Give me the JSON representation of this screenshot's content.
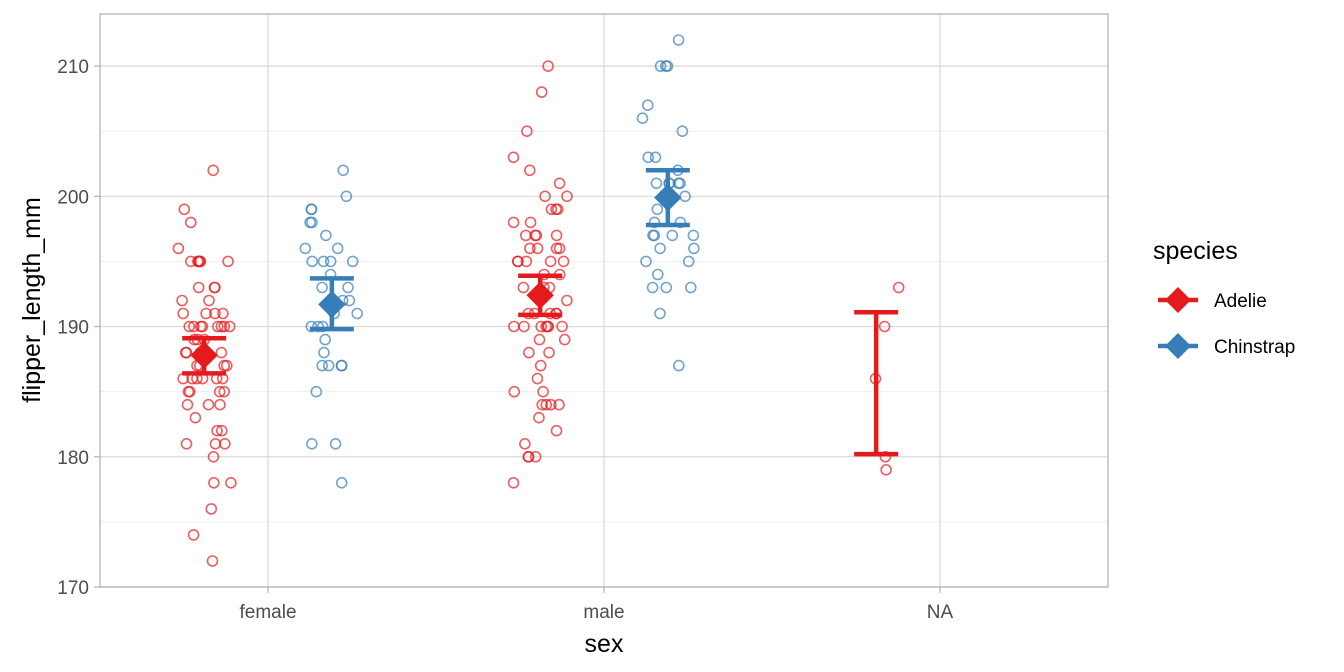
{
  "chart_data": {
    "type": "scatter",
    "title": "",
    "xlabel": "sex",
    "ylabel": "flipper_length_mm",
    "categories": [
      "female",
      "male",
      "NA"
    ],
    "ylim": [
      170,
      214
    ],
    "yticks": [
      "170",
      "180",
      "190",
      "200",
      "210"
    ],
    "grid": true,
    "legend": {
      "title": "species",
      "position": "right"
    },
    "series": [
      {
        "name": "Adelie",
        "color": "#E41A1C",
        "points": {
          "female": [
            172,
            174,
            176,
            178,
            178,
            180,
            181,
            181,
            181,
            182,
            182,
            183,
            184,
            184,
            184,
            185,
            185,
            185,
            185,
            186,
            186,
            186,
            186,
            186,
            186,
            187,
            187,
            187,
            187,
            188,
            188,
            188,
            188,
            189,
            189,
            189,
            190,
            190,
            190,
            190,
            190,
            190,
            190,
            190,
            191,
            191,
            191,
            191,
            192,
            192,
            193,
            193,
            193,
            195,
            195,
            195,
            195,
            195,
            195,
            196,
            198,
            199,
            202
          ],
          "male": [
            178,
            180,
            180,
            180,
            181,
            182,
            183,
            184,
            184,
            184,
            184,
            185,
            185,
            186,
            187,
            188,
            188,
            189,
            189,
            190,
            190,
            190,
            190,
            190,
            190,
            190,
            191,
            191,
            191,
            191,
            191,
            192,
            192,
            193,
            193,
            193,
            194,
            194,
            195,
            195,
            195,
            195,
            195,
            196,
            196,
            196,
            196,
            197,
            197,
            197,
            197,
            198,
            198,
            199,
            199,
            199,
            200,
            200,
            201,
            202,
            203,
            205,
            208,
            210
          ],
          "NA": [
            179,
            180,
            186,
            190,
            193
          ]
        },
        "mean": {
          "female": 187.8,
          "male": 192.4,
          "NA": null
        },
        "error_bar": {
          "female": [
            186.4,
            189.1
          ],
          "male": [
            190.9,
            193.9
          ],
          "NA": [
            180.2,
            191.1
          ]
        }
      },
      {
        "name": "Chinstrap",
        "color": "#377EB8",
        "points": {
          "female": [
            178,
            181,
            181,
            185,
            187,
            187,
            187,
            187,
            188,
            189,
            190,
            190,
            190,
            191,
            191,
            192,
            192,
            192,
            193,
            193,
            194,
            195,
            195,
            195,
            195,
            196,
            196,
            197,
            198,
            198,
            199,
            199,
            200,
            202
          ],
          "male": [
            187,
            191,
            193,
            193,
            193,
            194,
            195,
            195,
            196,
            196,
            197,
            197,
            197,
            197,
            198,
            198,
            199,
            200,
            201,
            201,
            201,
            201,
            201,
            202,
            203,
            203,
            205,
            206,
            207,
            210,
            210,
            210,
            212
          ],
          "NA": []
        },
        "mean": {
          "female": 191.7,
          "male": 199.9,
          "NA": null
        },
        "error_bar": {
          "female": [
            189.8,
            193.7
          ],
          "male": [
            197.8,
            202.0
          ],
          "NA": null
        }
      }
    ]
  }
}
